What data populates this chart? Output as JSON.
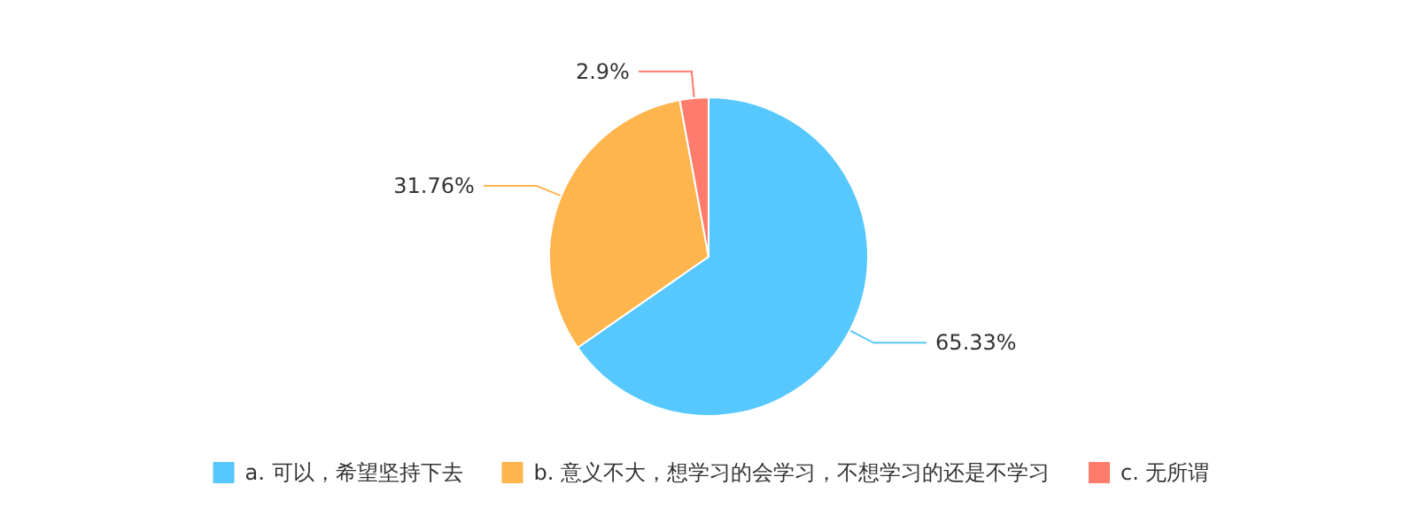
{
  "chart_data": {
    "type": "pie",
    "categories": [
      "a. 可以，希望坚持下去",
      "b. 意义不大，想学习的会学习，不想学习的还是不学习",
      "c. 无所谓"
    ],
    "values": [
      65.33,
      31.76,
      2.9
    ],
    "colors": [
      "#56c8fe",
      "#ffb54e",
      "#ff7b6c"
    ],
    "value_labels": [
      "65.33%",
      "31.76%",
      "2.9%"
    ],
    "legend": "bottom"
  }
}
